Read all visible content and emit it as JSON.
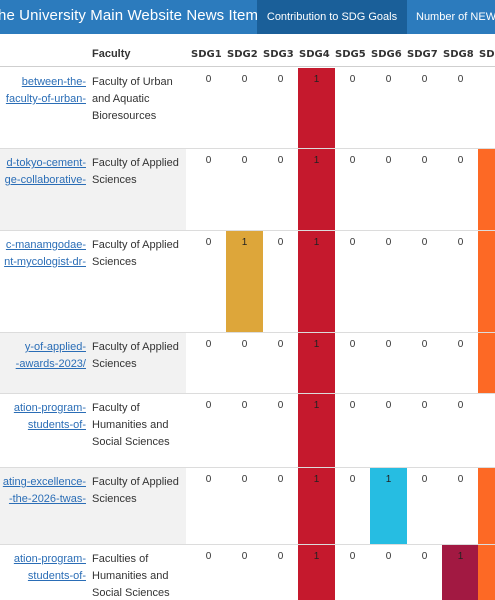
{
  "header": {
    "title": "he University Main Website News Items",
    "tab_active": "Contribution to SDG Goals",
    "tab_next": "Number of NEW"
  },
  "table": {
    "col_faculty": "Faculty",
    "sdg_headers": [
      "SDG1",
      "SDG2",
      "SDG3",
      "SDG4",
      "SDG5",
      "SDG6",
      "SDG7",
      "SDG8",
      "SDG"
    ],
    "sdg_colors": [
      "#e5243b",
      "#dda63a",
      "#4c9f38",
      "#c5192d",
      "#ff3a21",
      "#26bde2",
      "#fcc30b",
      "#a21942",
      "#fd6925"
    ],
    "rows": [
      {
        "url_lines": [
          "between-the-",
          "faculty-of-urban-"
        ],
        "faculty": "Faculty of Urban and Aquatic Bioresources",
        "values": [
          "0",
          "0",
          "0",
          "1",
          "0",
          "0",
          "0",
          "0",
          ""
        ]
      },
      {
        "url_lines": [
          "d-tokyo-cement-",
          "ge-collaborative-"
        ],
        "faculty": "Faculty of Applied Sciences",
        "values": [
          "0",
          "0",
          "0",
          "1",
          "0",
          "0",
          "0",
          "0",
          ""
        ]
      },
      {
        "url_lines": [
          "c-manamgodae-",
          "nt-mycologist-dr-"
        ],
        "faculty": "Faculty of Applied Sciences",
        "values": [
          "0",
          "1",
          "0",
          "1",
          "0",
          "0",
          "0",
          "0",
          ""
        ]
      },
      {
        "url_lines": [
          "y-of-applied-",
          "-awards-2023/"
        ],
        "faculty": "Faculty of Applied Sciences",
        "values": [
          "0",
          "0",
          "0",
          "1",
          "0",
          "0",
          "0",
          "0",
          ""
        ]
      },
      {
        "url_lines": [
          "ation-program-",
          "students-of-"
        ],
        "faculty": "Faculty of Humanities and Social Sciences",
        "values": [
          "0",
          "0",
          "0",
          "1",
          "0",
          "0",
          "0",
          "0",
          ""
        ]
      },
      {
        "url_lines": [
          "ating-excellence-",
          "-the-2026-twas-"
        ],
        "faculty": "Faculty of Applied Sciences",
        "values": [
          "0",
          "0",
          "0",
          "1",
          "0",
          "1",
          "0",
          "0",
          ""
        ]
      },
      {
        "url_lines": [
          "ation-program-",
          "students-of-"
        ],
        "faculty": "Faculties of Humanities and Social Sciences",
        "values": [
          "0",
          "0",
          "0",
          "1",
          "0",
          "0",
          "0",
          "1",
          ""
        ]
      }
    ],
    "highlight_col9_rows": [
      false,
      true,
      true,
      true,
      false,
      true,
      true
    ]
  }
}
